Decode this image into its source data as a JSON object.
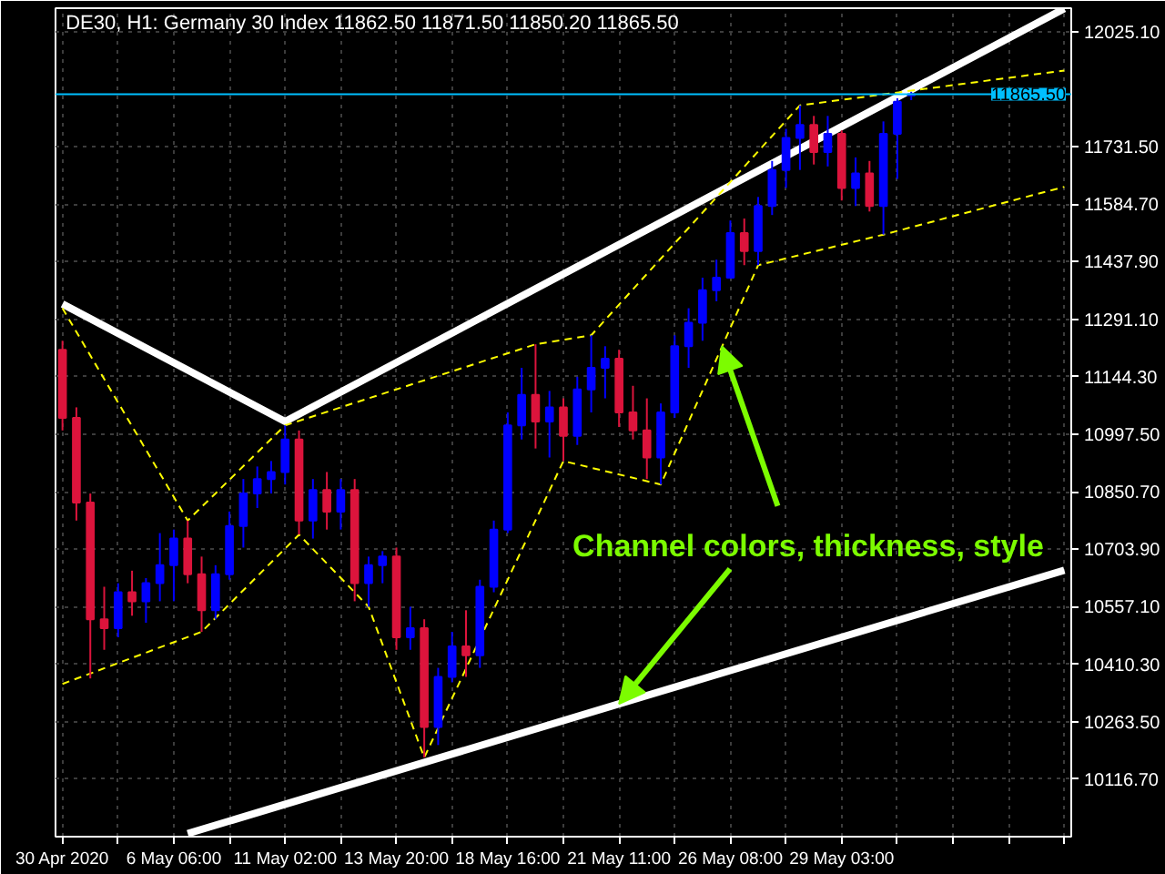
{
  "chart_data": {
    "type": "candlestick",
    "title": "DE30, H1: Germany 30 Index 11862.50 11871.50 11850.20 11865.50",
    "categories": [
      "30 Apr 2020",
      null,
      null,
      null,
      null,
      null,
      null,
      null,
      "6 May 06:00",
      null,
      null,
      null,
      null,
      null,
      null,
      null,
      "11 May 02:00",
      null,
      null,
      null,
      null,
      null,
      null,
      null,
      "13 May 20:00",
      null,
      null,
      null,
      null,
      null,
      null,
      null,
      "18 May 16:00",
      null,
      null,
      null,
      null,
      null,
      null,
      null,
      "21 May 11:00",
      null,
      null,
      null,
      null,
      null,
      null,
      null,
      "26 May 08:00",
      null,
      null,
      null,
      null,
      null,
      null,
      null,
      "29 May 03:00",
      null,
      null,
      null,
      null,
      null,
      null,
      null,
      null,
      null,
      null,
      null,
      null,
      null,
      null,
      null,
      null
    ],
    "ohlc": [
      [
        11213,
        11236,
        11007,
        11039
      ],
      [
        11039,
        11066,
        10777,
        10823
      ],
      [
        10823,
        10846,
        10374,
        10525
      ],
      [
        10525,
        10608,
        10447,
        10502
      ],
      [
        10502,
        10617,
        10479,
        10594
      ],
      [
        10594,
        10649,
        10534,
        10571
      ],
      [
        10571,
        10630,
        10516,
        10617
      ],
      [
        10617,
        10745,
        10571,
        10663
      ],
      [
        10663,
        10754,
        10571,
        10731
      ],
      [
        10731,
        10777,
        10617,
        10640
      ],
      [
        10640,
        10685,
        10493,
        10548
      ],
      [
        10548,
        10663,
        10525,
        10640
      ],
      [
        10640,
        10800,
        10626,
        10763
      ],
      [
        10763,
        10883,
        10708,
        10846
      ],
      [
        10846,
        10915,
        10809,
        10883
      ],
      [
        10883,
        10929,
        10846,
        10901
      ],
      [
        10901,
        11020,
        10869,
        10984
      ],
      [
        10984,
        11007,
        10741,
        10777
      ],
      [
        10777,
        10883,
        10731,
        10855
      ],
      [
        10855,
        10901,
        10754,
        10800
      ],
      [
        10800,
        10883,
        10754,
        10855
      ],
      [
        10855,
        10883,
        10571,
        10617
      ],
      [
        10617,
        10685,
        10557,
        10663
      ],
      [
        10663,
        10699,
        10617,
        10685
      ],
      [
        10685,
        10708,
        10447,
        10479
      ],
      [
        10479,
        10557,
        10447,
        10502
      ],
      [
        10502,
        10525,
        10172,
        10250
      ],
      [
        10250,
        10401,
        10204,
        10378
      ],
      [
        10378,
        10493,
        10364,
        10456
      ],
      [
        10456,
        10548,
        10378,
        10433
      ],
      [
        10433,
        10626,
        10401,
        10608
      ],
      [
        10608,
        10777,
        10594,
        10754
      ],
      [
        10754,
        11053,
        10745,
        11020
      ],
      [
        11020,
        11167,
        10984,
        11098
      ],
      [
        11098,
        11227,
        10961,
        11030
      ],
      [
        11030,
        11108,
        10938,
        11066
      ],
      [
        11066,
        11089,
        10929,
        10993
      ],
      [
        10993,
        11144,
        10970,
        11112
      ],
      [
        11112,
        11250,
        11053,
        11167
      ],
      [
        11167,
        11222,
        11089,
        11190
      ],
      [
        11190,
        11213,
        11016,
        11053
      ],
      [
        11053,
        11121,
        10984,
        11007
      ],
      [
        11007,
        11089,
        10883,
        10938
      ],
      [
        10938,
        11076,
        10869,
        11053
      ],
      [
        11053,
        11250,
        11039,
        11222
      ],
      [
        11222,
        11319,
        11167,
        11282
      ],
      [
        11282,
        11397,
        11236,
        11365
      ],
      [
        11365,
        11443,
        11337,
        11397
      ],
      [
        11397,
        11543,
        11397,
        11511
      ],
      [
        11511,
        11548,
        11429,
        11465
      ],
      [
        11465,
        11603,
        11429,
        11580
      ],
      [
        11580,
        11695,
        11557,
        11672
      ],
      [
        11672,
        11777,
        11626,
        11754
      ],
      [
        11754,
        11837,
        11672,
        11787
      ],
      [
        11787,
        11810,
        11686,
        11718
      ],
      [
        11718,
        11810,
        11681,
        11764
      ],
      [
        11764,
        11773,
        11594,
        11626
      ],
      [
        11626,
        11704,
        11580,
        11663
      ],
      [
        11663,
        11695,
        11566,
        11580
      ],
      [
        11580,
        11796,
        11507,
        11764
      ],
      [
        11764,
        11855,
        11649,
        11846
      ],
      [
        11862.5,
        11871.5,
        11850.2,
        11865.5
      ],
      null,
      null,
      null,
      null,
      null,
      null,
      null,
      null,
      null,
      null,
      null
    ],
    "colors": [
      "#dc143c",
      "#dc143c",
      "#dc143c",
      "#dc143c",
      "#0000ff",
      "#dc143c",
      "#0000ff",
      "#0000ff",
      "#0000ff",
      "#dc143c",
      "#dc143c",
      "#0000ff",
      "#0000ff",
      "#0000ff",
      "#0000ff",
      "#0000ff",
      "#0000ff",
      "#dc143c",
      "#0000ff",
      "#dc143c",
      "#0000ff",
      "#dc143c",
      "#0000ff",
      "#0000ff",
      "#dc143c",
      "#0000ff",
      "#dc143c",
      "#0000ff",
      "#0000ff",
      "#dc143c",
      "#0000ff",
      "#0000ff",
      "#0000ff",
      "#0000ff",
      "#dc143c",
      "#0000ff",
      "#dc143c",
      "#0000ff",
      "#0000ff",
      "#0000ff",
      "#dc143c",
      "#dc143c",
      "#dc143c",
      "#0000ff",
      "#0000ff",
      "#0000ff",
      "#0000ff",
      "#0000ff",
      "#0000ff",
      "#dc143c",
      "#0000ff",
      "#0000ff",
      "#0000ff",
      "#0000ff",
      "#dc143c",
      "#0000ff",
      "#dc143c",
      "#0000ff",
      "#dc143c",
      "#0000ff",
      "#0000ff",
      "#0000ff",
      null,
      null,
      null,
      null,
      null,
      null,
      null,
      null,
      null,
      null,
      null
    ],
    "series": [
      {
        "type": "line",
        "color": "#ffffff",
        "line_style": "solid",
        "values": [
          11330,
          null,
          null,
          null,
          null,
          null,
          null,
          null,
          null,
          null,
          null,
          null,
          null,
          null,
          null,
          null,
          11030,
          null,
          null,
          null,
          null,
          null,
          null,
          null,
          null,
          null,
          null,
          null,
          null,
          null,
          null,
          null,
          null,
          null,
          null,
          null,
          null,
          null,
          null,
          null,
          null,
          null,
          null,
          null,
          null,
          null,
          null,
          null,
          null,
          null,
          null,
          null,
          null,
          null,
          null,
          null,
          null,
          null,
          null,
          null,
          null,
          null,
          null,
          null,
          null,
          null,
          null,
          null,
          null,
          null,
          null,
          null,
          12084
        ]
      },
      {
        "type": "line",
        "color": "#ffffff",
        "line_style": "solid",
        "values": [
          null,
          null,
          null,
          null,
          null,
          null,
          null,
          null,
          null,
          9978,
          null,
          null,
          null,
          null,
          null,
          null,
          null,
          null,
          null,
          null,
          null,
          null,
          null,
          null,
          null,
          null,
          null,
          null,
          null,
          null,
          null,
          null,
          null,
          null,
          null,
          null,
          null,
          null,
          null,
          null,
          10309,
          null,
          null,
          null,
          null,
          null,
          null,
          null,
          null,
          null,
          null,
          null,
          null,
          null,
          null,
          null,
          null,
          null,
          null,
          null,
          null,
          null,
          null,
          null,
          null,
          null,
          null,
          null,
          null,
          null,
          null,
          null,
          10650
        ]
      },
      {
        "type": "line",
        "color": "#ffff00",
        "line_style": "dashed",
        "values": [
          11319,
          null,
          null,
          null,
          null,
          null,
          null,
          null,
          null,
          10777,
          null,
          null,
          null,
          null,
          null,
          null,
          11020,
          null,
          null,
          null,
          null,
          null,
          null,
          null,
          null,
          null,
          null,
          null,
          null,
          null,
          null,
          null,
          null,
          null,
          11227,
          null,
          null,
          null,
          11250,
          null,
          null,
          null,
          null,
          null,
          null,
          null,
          null,
          null,
          null,
          null,
          null,
          null,
          null,
          11837,
          null,
          null,
          null,
          null,
          null,
          null,
          null,
          null,
          null,
          null,
          null,
          null,
          null,
          null,
          null,
          null,
          null,
          null,
          11926
        ]
      },
      {
        "type": "line",
        "color": "#ffff00",
        "line_style": "dashed",
        "values": [
          10360,
          null,
          null,
          null,
          null,
          null,
          null,
          null,
          null,
          null,
          10493,
          null,
          null,
          null,
          null,
          null,
          null,
          10741,
          null,
          null,
          null,
          null,
          10557,
          null,
          null,
          null,
          10172,
          null,
          null,
          null,
          null,
          null,
          null,
          null,
          null,
          null,
          10929,
          null,
          null,
          null,
          null,
          null,
          null,
          10869,
          null,
          null,
          null,
          null,
          null,
          null,
          11429,
          null,
          null,
          null,
          null,
          null,
          null,
          null,
          null,
          11507,
          null,
          null,
          null,
          null,
          null,
          null,
          null,
          null,
          null,
          null,
          null,
          null,
          11629
        ]
      }
    ],
    "ylim": [
      9970,
      12085
    ],
    "yticks": [
      {
        "value": 10116.7,
        "label": "10116.70"
      },
      {
        "value": 10263.5,
        "label": "10263.50"
      },
      {
        "value": 10410.3,
        "label": "10410.30"
      },
      {
        "value": 10557.1,
        "label": "10557.10"
      },
      {
        "value": 10703.9,
        "label": "10703.90"
      },
      {
        "value": 10850.7,
        "label": "10850.70"
      },
      {
        "value": 10997.5,
        "label": "10997.50"
      },
      {
        "value": 11144.3,
        "label": "11144.30"
      },
      {
        "value": 11291.1,
        "label": "11291.10"
      },
      {
        "value": 11437.9,
        "label": "11437.90"
      },
      {
        "value": 11584.7,
        "label": "11584.70"
      },
      {
        "value": 11731.5,
        "label": "11731.50"
      },
      {
        "value": 12025.1,
        "label": "12025.10"
      }
    ],
    "grid": true,
    "ref_lines": [
      {
        "axis": "y",
        "value": 11865.5,
        "label": "11865.50",
        "color": "#00bfff"
      }
    ],
    "annotations": [
      {
        "text": "Channel colors, thickness, style",
        "x": "21 May 11:00",
        "y": 10309
      }
    ]
  }
}
